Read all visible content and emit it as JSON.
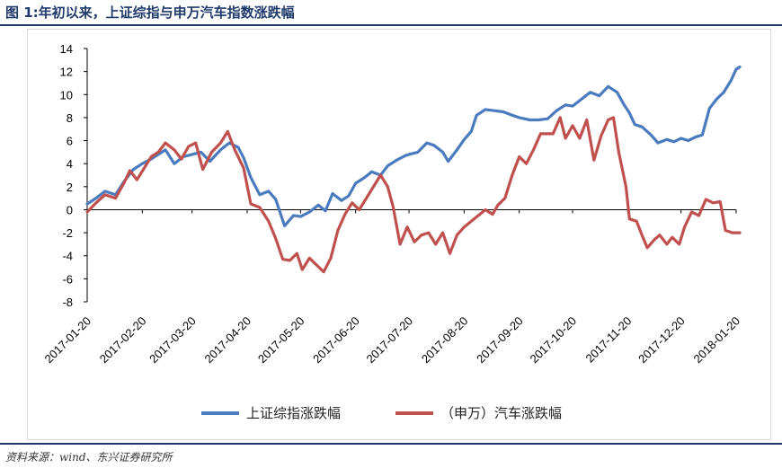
{
  "header": {
    "title": "图 1:年初以来，上证综指与申万汽车指数涨跌幅"
  },
  "footer": {
    "source": "资料来源：wind、东兴证券研究所"
  },
  "colors": {
    "series_1": "#4a7bbf",
    "series_2": "#c0504d",
    "rule": "#1f3a6b"
  },
  "chart_data": {
    "type": "line",
    "title": "",
    "xlabel": "",
    "ylabel": "",
    "ylim": [
      -8,
      14
    ],
    "yticks": [
      14,
      12,
      10,
      8,
      6,
      4,
      2,
      0,
      -2,
      -4,
      -6,
      -8
    ],
    "negative_tick_color": "#e00000",
    "grid": false,
    "legend_position": "bottom",
    "x_tick_labels": [
      "2017-01-20",
      "2017-02-20",
      "2017-03-20",
      "2017-04-20",
      "2017-05-20",
      "2017-06-20",
      "2017-07-20",
      "2017-08-20",
      "2017-09-20",
      "2017-10-20",
      "2017-11-20",
      "2017-12-20",
      "2018-01-20"
    ],
    "series": [
      {
        "name": "上证综指涨跌幅",
        "color": "#4a7bbf",
        "points": [
          [
            "2017-01-20",
            0.5
          ],
          [
            "2017-01-25",
            1.0
          ],
          [
            "2017-01-30",
            1.6
          ],
          [
            "2017-02-05",
            1.3
          ],
          [
            "2017-02-10",
            2.5
          ],
          [
            "2017-02-15",
            3.5
          ],
          [
            "2017-02-20",
            4.0
          ],
          [
            "2017-02-25",
            4.4
          ],
          [
            "2017-03-01",
            4.8
          ],
          [
            "2017-03-05",
            5.2
          ],
          [
            "2017-03-10",
            4.0
          ],
          [
            "2017-03-15",
            4.6
          ],
          [
            "2017-03-20",
            4.8
          ],
          [
            "2017-03-25",
            5.0
          ],
          [
            "2017-03-30",
            4.2
          ],
          [
            "2017-04-05",
            5.2
          ],
          [
            "2017-04-10",
            5.8
          ],
          [
            "2017-04-15",
            5.4
          ],
          [
            "2017-04-18",
            4.5
          ],
          [
            "2017-04-22",
            2.8
          ],
          [
            "2017-04-27",
            1.3
          ],
          [
            "2017-05-02",
            1.6
          ],
          [
            "2017-05-06",
            0.9
          ],
          [
            "2017-05-11",
            -1.4
          ],
          [
            "2017-05-16",
            -0.5
          ],
          [
            "2017-05-20",
            -0.6
          ],
          [
            "2017-05-25",
            -0.2
          ],
          [
            "2017-05-30",
            0.4
          ],
          [
            "2017-06-03",
            -0.1
          ],
          [
            "2017-06-07",
            1.4
          ],
          [
            "2017-06-12",
            0.8
          ],
          [
            "2017-06-16",
            1.2
          ],
          [
            "2017-06-20",
            2.3
          ],
          [
            "2017-06-25",
            2.8
          ],
          [
            "2017-06-29",
            3.3
          ],
          [
            "2017-07-04",
            3.0
          ],
          [
            "2017-07-08",
            3.8
          ],
          [
            "2017-07-13",
            4.3
          ],
          [
            "2017-07-18",
            4.7
          ],
          [
            "2017-07-20",
            4.8
          ],
          [
            "2017-07-25",
            5.0
          ],
          [
            "2017-07-30",
            5.8
          ],
          [
            "2017-08-03",
            5.6
          ],
          [
            "2017-08-08",
            5.0
          ],
          [
            "2017-08-11",
            4.2
          ],
          [
            "2017-08-16",
            5.2
          ],
          [
            "2017-08-20",
            6.1
          ],
          [
            "2017-08-24",
            6.8
          ],
          [
            "2017-08-27",
            8.2
          ],
          [
            "2017-09-01",
            8.7
          ],
          [
            "2017-09-06",
            8.6
          ],
          [
            "2017-09-11",
            8.5
          ],
          [
            "2017-09-16",
            8.2
          ],
          [
            "2017-09-20",
            8.0
          ],
          [
            "2017-09-26",
            7.8
          ],
          [
            "2017-10-01",
            7.8
          ],
          [
            "2017-10-06",
            7.9
          ],
          [
            "2017-10-11",
            8.6
          ],
          [
            "2017-10-16",
            9.1
          ],
          [
            "2017-10-20",
            9.0
          ],
          [
            "2017-10-25",
            9.6
          ],
          [
            "2017-10-30",
            10.2
          ],
          [
            "2017-11-04",
            9.9
          ],
          [
            "2017-11-09",
            10.7
          ],
          [
            "2017-11-14",
            10.2
          ],
          [
            "2017-11-18",
            9.1
          ],
          [
            "2017-11-21",
            8.4
          ],
          [
            "2017-11-24",
            7.4
          ],
          [
            "2017-11-28",
            7.2
          ],
          [
            "2017-12-03",
            6.5
          ],
          [
            "2017-12-07",
            5.8
          ],
          [
            "2017-12-12",
            6.1
          ],
          [
            "2017-12-16",
            5.9
          ],
          [
            "2017-12-20",
            6.2
          ],
          [
            "2017-12-24",
            6.0
          ],
          [
            "2017-12-28",
            6.3
          ],
          [
            "2018-01-01",
            6.5
          ],
          [
            "2018-01-05",
            8.8
          ],
          [
            "2018-01-09",
            9.6
          ],
          [
            "2018-01-13",
            10.2
          ],
          [
            "2018-01-17",
            11.2
          ],
          [
            "2018-01-20",
            12.2
          ],
          [
            "2018-01-22",
            12.4
          ]
        ]
      },
      {
        "name": "（申万）汽车涨跌幅",
        "color": "#c0504d",
        "points": [
          [
            "2017-01-20",
            -0.2
          ],
          [
            "2017-01-25",
            0.6
          ],
          [
            "2017-01-30",
            1.3
          ],
          [
            "2017-02-05",
            1.0
          ],
          [
            "2017-02-10",
            2.4
          ],
          [
            "2017-02-13",
            3.4
          ],
          [
            "2017-02-17",
            2.6
          ],
          [
            "2017-02-21",
            3.6
          ],
          [
            "2017-02-25",
            4.6
          ],
          [
            "2017-03-01",
            5.0
          ],
          [
            "2017-03-05",
            5.8
          ],
          [
            "2017-03-10",
            5.2
          ],
          [
            "2017-03-14",
            4.4
          ],
          [
            "2017-03-18",
            5.5
          ],
          [
            "2017-03-22",
            5.8
          ],
          [
            "2017-03-26",
            3.5
          ],
          [
            "2017-03-31",
            5.0
          ],
          [
            "2017-04-05",
            5.8
          ],
          [
            "2017-04-09",
            6.8
          ],
          [
            "2017-04-13",
            5.2
          ],
          [
            "2017-04-18",
            3.6
          ],
          [
            "2017-04-22",
            0.5
          ],
          [
            "2017-04-27",
            0.2
          ],
          [
            "2017-05-02",
            -1.0
          ],
          [
            "2017-05-06",
            -2.5
          ],
          [
            "2017-05-10",
            -4.3
          ],
          [
            "2017-05-14",
            -4.4
          ],
          [
            "2017-05-18",
            -3.8
          ],
          [
            "2017-05-21",
            -5.2
          ],
          [
            "2017-05-25",
            -4.2
          ],
          [
            "2017-05-29",
            -4.8
          ],
          [
            "2017-06-02",
            -5.4
          ],
          [
            "2017-06-06",
            -4.2
          ],
          [
            "2017-06-10",
            -1.8
          ],
          [
            "2017-06-14",
            -0.4
          ],
          [
            "2017-06-18",
            0.6
          ],
          [
            "2017-06-22",
            0.0
          ],
          [
            "2017-06-26",
            1.0
          ],
          [
            "2017-06-30",
            2.0
          ],
          [
            "2017-07-04",
            3.0
          ],
          [
            "2017-07-08",
            2.0
          ],
          [
            "2017-07-11",
            0.3
          ],
          [
            "2017-07-15",
            -3.0
          ],
          [
            "2017-07-19",
            -1.5
          ],
          [
            "2017-07-23",
            -2.8
          ],
          [
            "2017-07-27",
            -2.2
          ],
          [
            "2017-07-31",
            -2.0
          ],
          [
            "2017-08-04",
            -3.0
          ],
          [
            "2017-08-08",
            -2.0
          ],
          [
            "2017-08-12",
            -3.8
          ],
          [
            "2017-08-16",
            -2.2
          ],
          [
            "2017-08-20",
            -1.5
          ],
          [
            "2017-08-24",
            -1.0
          ],
          [
            "2017-08-28",
            -0.5
          ],
          [
            "2017-09-01",
            0.0
          ],
          [
            "2017-09-05",
            -0.4
          ],
          [
            "2017-09-08",
            0.4
          ],
          [
            "2017-09-12",
            1.0
          ],
          [
            "2017-09-16",
            3.0
          ],
          [
            "2017-09-20",
            4.6
          ],
          [
            "2017-09-24",
            4.0
          ],
          [
            "2017-09-28",
            5.2
          ],
          [
            "2017-10-02",
            6.6
          ],
          [
            "2017-10-06",
            6.6
          ],
          [
            "2017-10-09",
            6.6
          ],
          [
            "2017-10-13",
            8.0
          ],
          [
            "2017-10-16",
            6.2
          ],
          [
            "2017-10-20",
            7.3
          ],
          [
            "2017-10-24",
            6.2
          ],
          [
            "2017-10-28",
            7.8
          ],
          [
            "2017-11-01",
            4.3
          ],
          [
            "2017-11-05",
            6.4
          ],
          [
            "2017-11-09",
            7.8
          ],
          [
            "2017-11-12",
            8.0
          ],
          [
            "2017-11-15",
            5.0
          ],
          [
            "2017-11-19",
            2.0
          ],
          [
            "2017-11-21",
            -0.8
          ],
          [
            "2017-11-25",
            -1.0
          ],
          [
            "2017-11-28",
            -2.2
          ],
          [
            "2017-12-01",
            -3.3
          ],
          [
            "2017-12-05",
            -2.6
          ],
          [
            "2017-12-08",
            -2.2
          ],
          [
            "2017-12-12",
            -3.0
          ],
          [
            "2017-12-15",
            -2.4
          ],
          [
            "2017-12-19",
            -3.0
          ],
          [
            "2017-12-22",
            -1.5
          ],
          [
            "2017-12-26",
            -0.2
          ],
          [
            "2017-12-30",
            -0.5
          ],
          [
            "2018-01-03",
            0.9
          ],
          [
            "2018-01-07",
            0.6
          ],
          [
            "2018-01-11",
            0.7
          ],
          [
            "2018-01-14",
            -1.8
          ],
          [
            "2018-01-18",
            -2.0
          ],
          [
            "2018-01-22",
            -2.0
          ]
        ]
      }
    ]
  }
}
